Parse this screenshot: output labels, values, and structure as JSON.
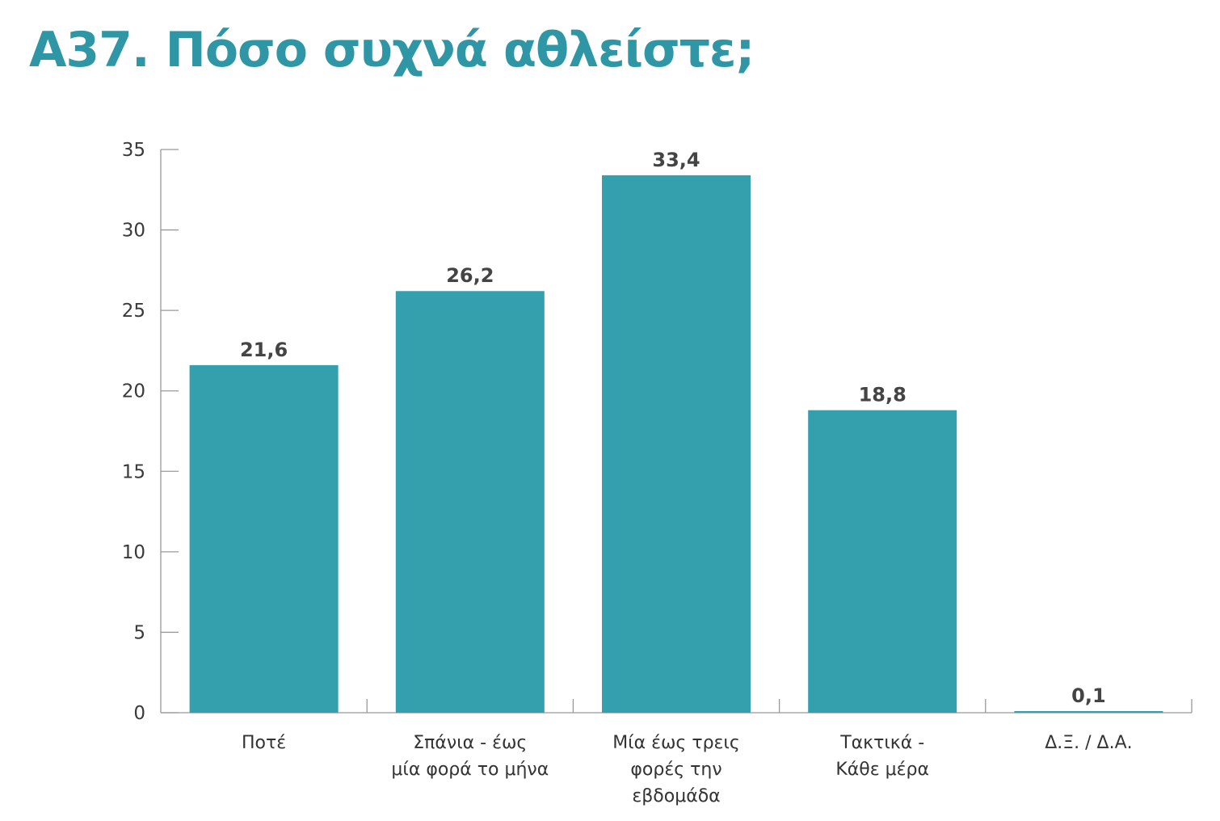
{
  "title": "Α37. Πόσο συχνά αθλείστε;",
  "colors": {
    "title": "#2e96a5",
    "bar": "#35a0ad",
    "axis": "#999999",
    "value_label": "#444444",
    "tick_label": "#3a3a3a",
    "category_label": "#333333"
  },
  "chart_data": {
    "type": "bar",
    "categories": [
      [
        "Ποτέ"
      ],
      [
        "Σπάνια - έως",
        "μία φορά το μήνα"
      ],
      [
        "Μία έως τρεις",
        "φορές την",
        "εβδομάδα"
      ],
      [
        "Τακτικά -",
        "Κάθε μέρα"
      ],
      [
        "Δ.Ξ. / Δ.Α."
      ]
    ],
    "values": [
      21.6,
      26.2,
      33.4,
      18.8,
      0.1
    ],
    "data_labels": [
      "21,6",
      "26,2",
      "33,4",
      "18,8",
      "0,1"
    ],
    "ylim": [
      0,
      35
    ],
    "yticks": [
      0,
      5,
      10,
      15,
      20,
      25,
      30,
      35
    ],
    "xlabel": "",
    "ylabel": "",
    "grid": false,
    "legend": "none"
  }
}
